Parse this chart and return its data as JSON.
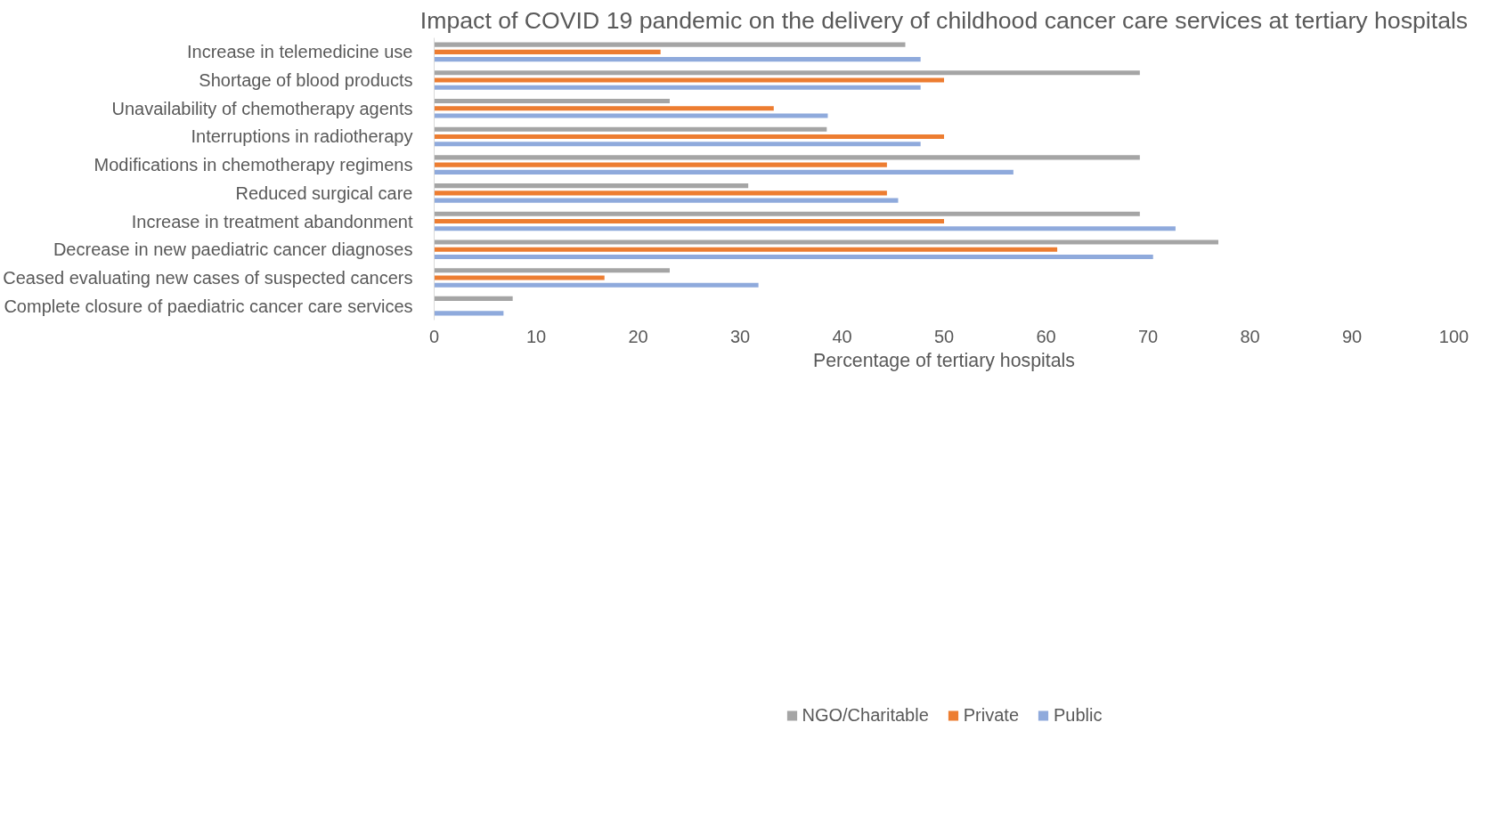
{
  "chart_data": {
    "type": "bar",
    "orientation": "horizontal",
    "title": "Impact of COVID 19 pandemic on the delivery of childhood cancer care services at tertiary hospitals",
    "xlabel": "Percentage of tertiary hospitals",
    "categories": [
      "Increase in telemedicine use",
      "Shortage of blood products",
      "Unavailability of chemotherapy agents",
      "Interruptions in radiotherapy",
      "Modifications in chemotherapy regimens",
      "Reduced surgical care",
      "Increase in treatment abandonment",
      "Decrease in new paediatric cancer diagnoses",
      "Ceased evaluating new cases of suspected cancers",
      "Complete closure of paediatric cancer care services"
    ],
    "series": [
      {
        "name": "NGO/Charitable",
        "color": "#a5a5a5",
        "values": [
          46.2,
          69.2,
          23.1,
          38.5,
          69.2,
          30.8,
          69.2,
          76.9,
          23.1,
          7.7
        ]
      },
      {
        "name": "Private",
        "color": "#ed7d31",
        "values": [
          22.2,
          50,
          33.3,
          50,
          44.4,
          44.4,
          50,
          61.1,
          16.7,
          0
        ]
      },
      {
        "name": "Public",
        "color": "#8faadc",
        "values": [
          47.7,
          47.7,
          38.6,
          47.7,
          56.8,
          45.5,
          72.7,
          70.5,
          31.8,
          6.8
        ]
      }
    ],
    "xlim": [
      0,
      100
    ],
    "xticks": [
      0,
      10,
      20,
      30,
      40,
      50,
      60,
      70,
      80,
      90,
      100
    ],
    "grid": false,
    "legend": "bottom"
  }
}
